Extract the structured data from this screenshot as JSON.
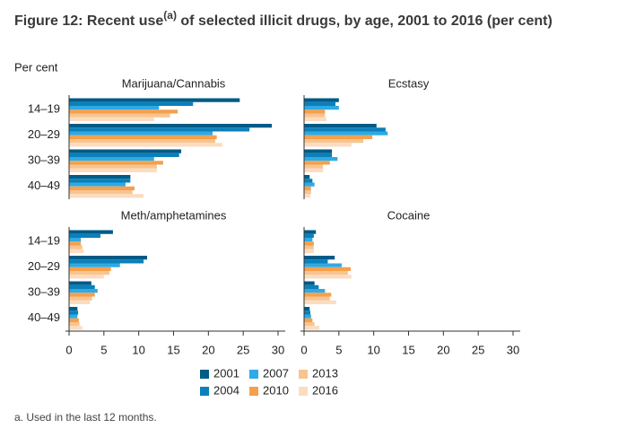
{
  "chart_data": {
    "type": "bar",
    "orientation": "horizontal",
    "title": "Figure 12: Recent use",
    "title_note": "(a)",
    "title_end": " of selected illicit drugs, by age, 2001 to 2016 (per cent)",
    "value_label": "Per cent",
    "footnote": "a. Used in the last 12 months.",
    "categories": [
      "14–19",
      "20–29",
      "30–39",
      "40–49"
    ],
    "series": [
      {
        "name": "2001",
        "color": "#005b86"
      },
      {
        "name": "2004",
        "color": "#0b80b9"
      },
      {
        "name": "2007",
        "color": "#2eaae6"
      },
      {
        "name": "2010",
        "color": "#f5a04c"
      },
      {
        "name": "2013",
        "color": "#f8c48f"
      },
      {
        "name": "2016",
        "color": "#fbdcc1"
      }
    ],
    "panels": [
      {
        "title": "Marijuana/Cannabis",
        "values": [
          [
            24.5,
            29.1,
            16.1,
            8.8
          ],
          [
            17.8,
            25.9,
            15.8,
            8.8
          ],
          [
            12.9,
            20.6,
            12.2,
            8.1
          ],
          [
            15.6,
            21.2,
            13.5,
            9.4
          ],
          [
            14.5,
            21.0,
            12.6,
            9.1
          ],
          [
            12.2,
            22.0,
            12.6,
            10.7
          ]
        ]
      },
      {
        "title": "Ecstasy",
        "values": [
          [
            5.0,
            10.4,
            4.0,
            0.8
          ],
          [
            4.5,
            11.7,
            4.0,
            1.2
          ],
          [
            5.0,
            12.0,
            4.8,
            1.5
          ],
          [
            3.0,
            9.8,
            3.7,
            1.0
          ],
          [
            3.0,
            8.5,
            2.7,
            1.0
          ],
          [
            3.2,
            6.8,
            2.7,
            0.9
          ]
        ]
      },
      {
        "title": "Meth/amphetamines",
        "values": [
          [
            6.3,
            11.2,
            3.2,
            1.2
          ],
          [
            4.5,
            10.7,
            3.7,
            1.3
          ],
          [
            1.7,
            7.3,
            4.1,
            1.2
          ],
          [
            1.7,
            6.0,
            3.7,
            1.4
          ],
          [
            1.9,
            5.8,
            3.3,
            1.5
          ],
          [
            2.1,
            5.0,
            3.0,
            1.9
          ]
        ]
      },
      {
        "title": "Cocaine",
        "values": [
          [
            1.7,
            4.4,
            1.5,
            0.8
          ],
          [
            1.4,
            3.4,
            2.1,
            0.9
          ],
          [
            1.2,
            5.4,
            3.0,
            1.0
          ],
          [
            1.4,
            6.7,
            3.9,
            1.2
          ],
          [
            1.4,
            6.3,
            3.7,
            1.5
          ],
          [
            1.4,
            6.8,
            4.6,
            2.2
          ]
        ]
      }
    ],
    "xlim": [
      0,
      30
    ],
    "xticks": [
      0,
      5,
      10,
      15,
      20,
      25,
      30
    ]
  }
}
